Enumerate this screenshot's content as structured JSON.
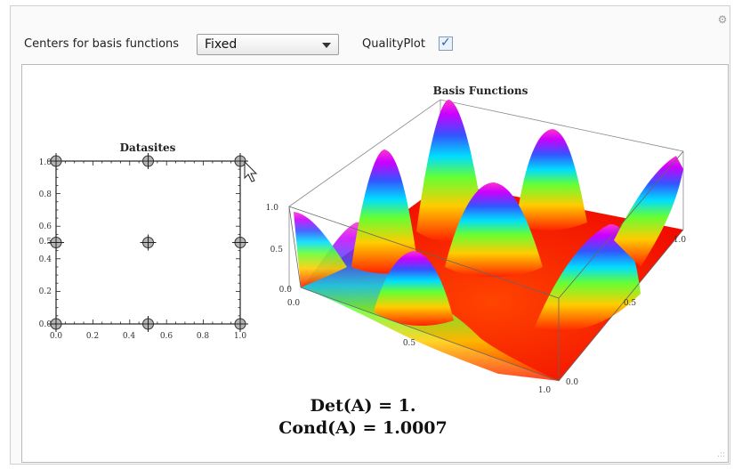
{
  "controls": {
    "centers_label": "Centers for basis functions",
    "centers_value": "Fixed",
    "qualityplot_label": "QualityPlot",
    "qualityplot_checked": true
  },
  "datasites_plot": {
    "title": "Datasites",
    "x_ticks": [
      "0.0",
      "0.2",
      "0.4",
      "0.6",
      "0.8",
      "1.0"
    ],
    "y_ticks": [
      "0.0",
      "0.2",
      "0.4",
      "0.5",
      "0.6",
      "0.8",
      "1.0"
    ],
    "points": [
      [
        0,
        0
      ],
      [
        0.5,
        0
      ],
      [
        1,
        0
      ],
      [
        0,
        0.5
      ],
      [
        0.5,
        0.5
      ],
      [
        1,
        0.5
      ],
      [
        0,
        1
      ],
      [
        0.5,
        1
      ],
      [
        1,
        1
      ]
    ]
  },
  "basis_plot": {
    "title": "Basis Functions",
    "z_ticks": [
      "1.0",
      "0.5",
      "0.0"
    ],
    "x_ticks": [
      "0.0",
      "0.5",
      "1.0"
    ],
    "y_ticks": [
      "0.0",
      "0.5",
      "1.0"
    ]
  },
  "results": {
    "det": "Det(A) = 1.",
    "cond": "Cond(A) = 1.0007"
  }
}
